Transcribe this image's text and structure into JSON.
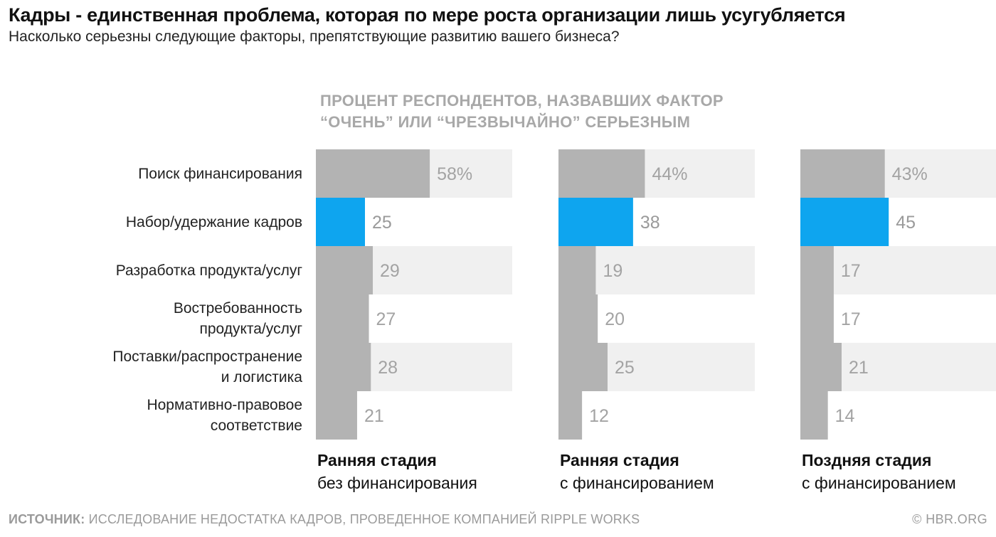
{
  "header": {
    "title": "Кадры - единственная проблема, которая по мере роста организации лишь усугубляется",
    "subtitle": "Насколько серьезны следующие факторы, препятствующие развитию вашего бизнеса?",
    "metric_line1": "Процент респондентов, назвавших фактор",
    "metric_line2": "“очень” или “чрезвычайно” серьезным"
  },
  "chart_data": {
    "type": "bar",
    "orientation": "horizontal",
    "title": "Кадры - единственная проблема, которая по мере роста организации лишь усугубляется",
    "subtitle": "Насколько серьезны следующие факторы, препятствующие развитию вашего бизнеса?",
    "categories": [
      [
        "Поиск финансирования"
      ],
      [
        "Набор/удержание кадров"
      ],
      [
        "Разработка продукта/услуг"
      ],
      [
        "Востребованность",
        "продукта/услуг"
      ],
      [
        "Поставки/распространение",
        "и логистика"
      ],
      [
        "Нормативно-правовое",
        "соответствие"
      ]
    ],
    "highlight_index": 1,
    "series": [
      {
        "name": "Ранняя стадия без финансирования",
        "head": "Ранняя стадия",
        "sub": "без финансирования",
        "values": [
          58,
          25,
          29,
          27,
          28,
          21
        ],
        "labels": [
          "58%",
          "25",
          "29",
          "27",
          "28",
          "21"
        ]
      },
      {
        "name": "Ранняя стадия с финансированием",
        "head": "Ранняя стадия",
        "sub": "с финансированием",
        "values": [
          44,
          38,
          19,
          20,
          25,
          12
        ],
        "labels": [
          "44%",
          "38",
          "19",
          "20",
          "25",
          "12"
        ]
      },
      {
        "name": "Поздняя стадия с финансированием",
        "head": "Поздняя стадия",
        "sub": "с финансированием",
        "values": [
          43,
          45,
          17,
          17,
          21,
          14
        ],
        "labels": [
          "43%",
          "45",
          "17",
          "17",
          "21",
          "14"
        ]
      }
    ],
    "xlim": [
      0,
      100
    ],
    "colors": {
      "bar": "#b3b3b3",
      "highlight": "#0ea5ef",
      "track_alt": "#f0f0f0",
      "value_text": "#a3a3a3",
      "highlight_value_text": "#9a9a9a"
    }
  },
  "footer": {
    "source_label": "ИСТОЧНИК:",
    "source_text": " ИССЛЕДОВАНИЕ НЕДОСТАТКА КАДРОВ, ПРОВЕДЕННОЕ КОМПАНИЕЙ RIPPLE WORKS",
    "copyright": "© HBR.ORG"
  }
}
